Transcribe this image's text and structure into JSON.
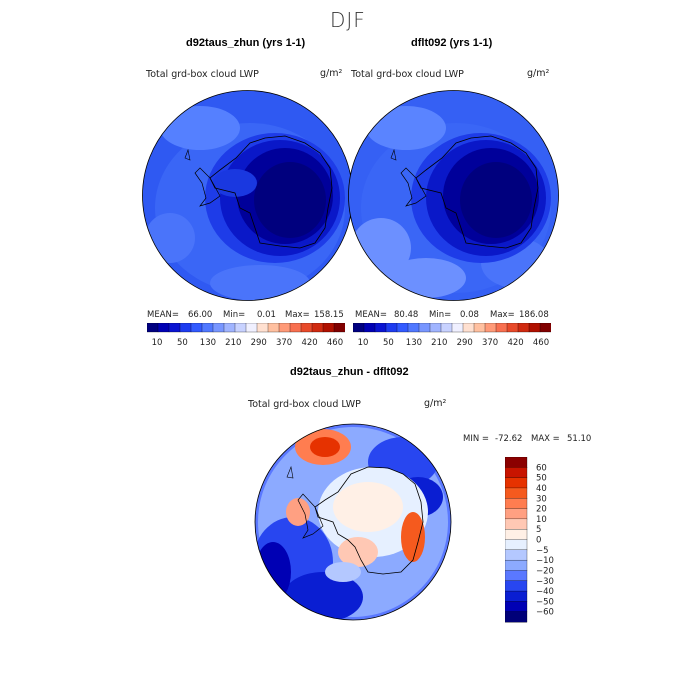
{
  "page_title": "DJF",
  "chart_data": [
    {
      "type": "heatmap",
      "projection": "south polar stereographic",
      "title": "d92taus_zhun (yrs 1-1)",
      "variable": "Total grd-box cloud LWP",
      "units": "g/m²",
      "stats": {
        "mean_label": "MEAN=",
        "mean": "66.00",
        "min_label": "Min=",
        "min": "0.01",
        "max_label": "Max=",
        "max": "158.15"
      },
      "colorbar": {
        "ticks": [
          "10",
          "50",
          "130",
          "210",
          "290",
          "370",
          "420",
          "460"
        ],
        "colors": [
          "#000080",
          "#0000b4",
          "#0a14d2",
          "#1e3cf0",
          "#325aff",
          "#5078ff",
          "#7896ff",
          "#a0b4ff",
          "#c8d2ff",
          "#f0f0ff",
          "#ffe0d0",
          "#ffc0a0",
          "#ff9a78",
          "#f87050",
          "#e84a2a",
          "#d02a10",
          "#b01000",
          "#800000"
        ]
      }
    },
    {
      "type": "heatmap",
      "projection": "south polar stereographic",
      "title": "dflt092 (yrs 1-1)",
      "variable": "Total grd-box cloud LWP",
      "units": "g/m²",
      "stats": {
        "mean_label": "MEAN=",
        "mean": "80.48",
        "min_label": "Min=",
        "min": "0.08",
        "max_label": "Max=",
        "max": "186.08"
      },
      "colorbar": {
        "ticks": [
          "10",
          "50",
          "130",
          "210",
          "290",
          "370",
          "420",
          "460"
        ],
        "colors": [
          "#000080",
          "#0000b4",
          "#0a14d2",
          "#1e3cf0",
          "#325aff",
          "#5078ff",
          "#7896ff",
          "#a0b4ff",
          "#c8d2ff",
          "#f0f0ff",
          "#ffe0d0",
          "#ffc0a0",
          "#ff9a78",
          "#f87050",
          "#e84a2a",
          "#d02a10",
          "#b01000",
          "#800000"
        ]
      }
    },
    {
      "type": "heatmap",
      "projection": "south polar stereographic",
      "title": "d92taus_zhun - dflt092",
      "variable": "Total grd-box cloud LWP",
      "units": "g/m²",
      "stats": {
        "min_label": "MIN =",
        "min": "-72.62",
        "max_label": "MAX =",
        "max": "51.10"
      },
      "colorbar": {
        "ticks": [
          "60",
          "50",
          "40",
          "30",
          "20",
          "10",
          "5",
          "0",
          "−5",
          "−10",
          "−20",
          "−30",
          "−40",
          "−50",
          "−60"
        ],
        "colors": [
          "#8b0000",
          "#c81400",
          "#e63200",
          "#f55a1e",
          "#ff7d50",
          "#ffa082",
          "#ffc8b4",
          "#fff0e6",
          "#e6f0ff",
          "#b4c8ff",
          "#8caaff",
          "#5a78ff",
          "#2846f0",
          "#0a1ed2",
          "#0000b4",
          "#000078"
        ]
      }
    }
  ]
}
